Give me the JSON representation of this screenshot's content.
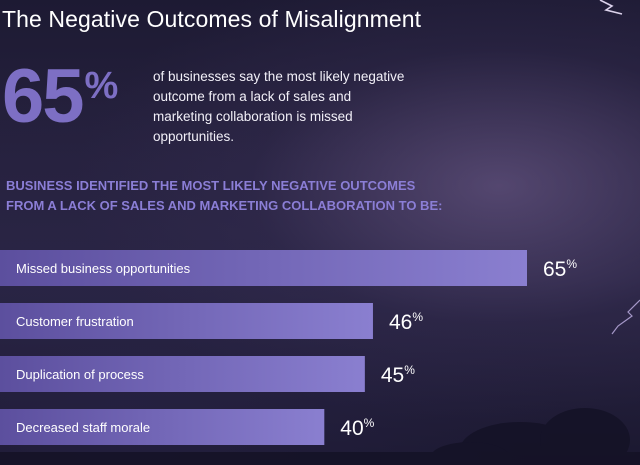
{
  "title": "The Negative Outcomes of Misalignment",
  "headline": {
    "number": "65",
    "sign": "%",
    "description": "of businesses say the most likely negative outcome from a lack of sales and marketing collaboration is missed opportunities."
  },
  "subheading": {
    "line1": "BUSINESS IDENTIFIED THE MOST LIKELY NEGATIVE OUTCOMES",
    "line2": "FROM A LACK OF SALES AND MARKETING COLLABORATION TO BE:"
  },
  "colors": {
    "accent": "#7d6fc4",
    "bar_dark": "#5c4f9e",
    "bar_light": "#8a7fd0"
  },
  "chart_data": {
    "type": "bar",
    "orientation": "horizontal",
    "categories": [
      "Missed business opportunities",
      "Customer frustration",
      "Duplication of process",
      "Decreased staff morale"
    ],
    "values": [
      65,
      46,
      45,
      40
    ],
    "value_suffix": "%",
    "title": "",
    "xlabel": "",
    "ylabel": "",
    "xlim": [
      0,
      65
    ],
    "grid": false,
    "legend": "none"
  }
}
